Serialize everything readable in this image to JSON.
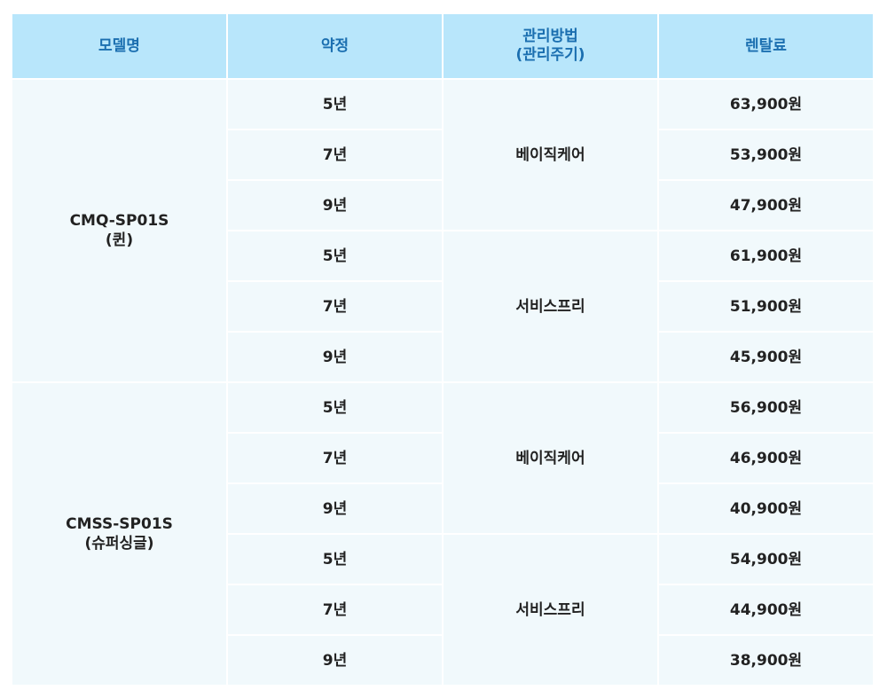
{
  "header": {
    "model": "모델명",
    "contract": "약정",
    "management_line1": "관리방법",
    "management_line2": "(관리주기)",
    "fee": "렌탈료"
  },
  "groups": [
    {
      "model_line1": "CMQ-SP01S",
      "model_line2": "(퀸)",
      "plans": [
        {
          "method": "베이직케어",
          "rows": [
            {
              "term": "5년",
              "fee": "63,900원"
            },
            {
              "term": "7년",
              "fee": "53,900원"
            },
            {
              "term": "9년",
              "fee": "47,900원"
            }
          ]
        },
        {
          "method": "서비스프리",
          "rows": [
            {
              "term": "5년",
              "fee": "61,900원"
            },
            {
              "term": "7년",
              "fee": "51,900원"
            },
            {
              "term": "9년",
              "fee": "45,900원"
            }
          ]
        }
      ]
    },
    {
      "model_line1": "CMSS-SP01S",
      "model_line2": "(슈퍼싱글)",
      "plans": [
        {
          "method": "베이직케어",
          "rows": [
            {
              "term": "5년",
              "fee": "56,900원"
            },
            {
              "term": "7년",
              "fee": "46,900원"
            },
            {
              "term": "9년",
              "fee": "40,900원"
            }
          ]
        },
        {
          "method": "서비스프리",
          "rows": [
            {
              "term": "5년",
              "fee": "54,900원"
            },
            {
              "term": "7년",
              "fee": "44,900원"
            },
            {
              "term": "9년",
              "fee": "38,900원"
            }
          ]
        }
      ]
    }
  ]
}
